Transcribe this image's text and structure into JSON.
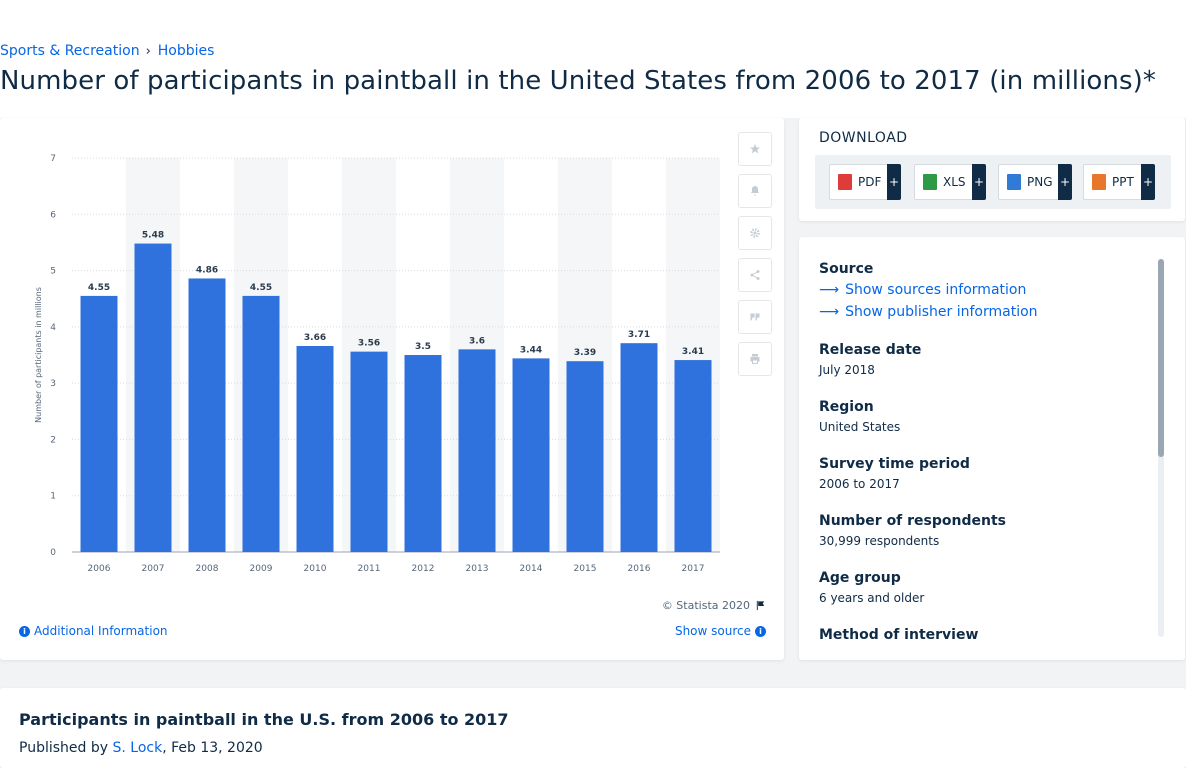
{
  "breadcrumb": {
    "item1": "Sports & Recreation",
    "separator": "›",
    "item2": "Hobbies"
  },
  "page_title": "Number of participants in paintball in the United States from 2006 to 2017 (in millions)*",
  "chart_data": {
    "type": "bar",
    "categories": [
      "2006",
      "2007",
      "2008",
      "2009",
      "2010",
      "2011",
      "2012",
      "2013",
      "2014",
      "2015",
      "2016",
      "2017"
    ],
    "values": [
      4.55,
      5.48,
      4.86,
      4.55,
      3.66,
      3.56,
      3.5,
      3.6,
      3.44,
      3.39,
      3.71,
      3.41
    ],
    "value_labels": [
      "4.55",
      "5.48",
      "4.86",
      "4.55",
      "3.66",
      "3.56",
      "3.5",
      "3.6",
      "3.44",
      "3.39",
      "3.71",
      "3.41"
    ],
    "ylabel": "Number of participants in millions",
    "ylim": [
      0,
      7
    ],
    "yticks": [
      0,
      1,
      2,
      3,
      4,
      5,
      6,
      7
    ],
    "bar_color": "#3072dd",
    "grid": true
  },
  "chart_footer": {
    "copyright": "© Statista 2020",
    "additional_info": "Additional Information",
    "show_source": "Show source"
  },
  "tools": [
    "star-icon",
    "bell-icon",
    "gear-icon",
    "share-icon",
    "quote-icon",
    "print-icon"
  ],
  "download": {
    "title": "DOWNLOAD",
    "buttons": [
      {
        "label": "PDF",
        "color": "#e03b3b"
      },
      {
        "label": "XLS",
        "color": "#2f9a46"
      },
      {
        "label": "PNG",
        "color": "#2f7bd6"
      },
      {
        "label": "PPT",
        "color": "#e8772c"
      }
    ],
    "plus": "+"
  },
  "meta": {
    "source_heading": "Source",
    "show_sources": "Show sources information",
    "show_publisher": "Show publisher information",
    "release_heading": "Release date",
    "release_value": "July 2018",
    "region_heading": "Region",
    "region_value": "United States",
    "survey_heading": "Survey time period",
    "survey_value": "2006 to 2017",
    "respondents_heading": "Number of respondents",
    "respondents_value": "30,999 respondents",
    "age_heading": "Age group",
    "age_value": "6 years and older",
    "method_heading": "Method of interview"
  },
  "publication": {
    "title": "Participants in paintball in the U.S. from 2006 to 2017",
    "published_by": "Published by",
    "author": "S. Lock",
    "date": ", Feb 13, 2020"
  }
}
